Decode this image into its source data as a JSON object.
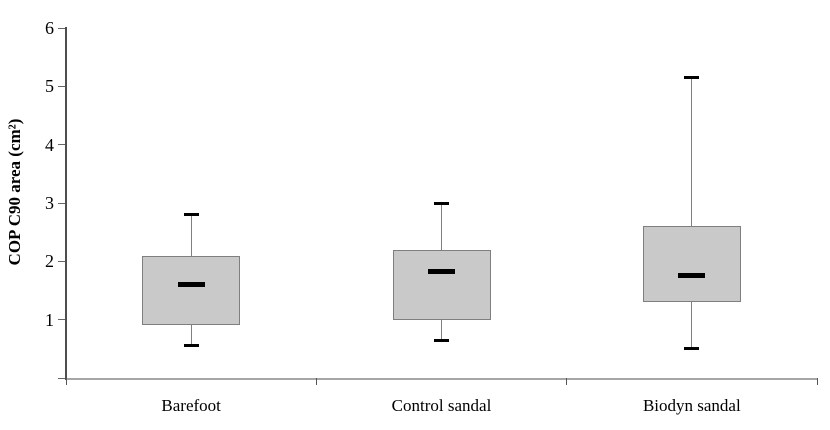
{
  "axes": {
    "y_label": "COP C90 area (cm²)",
    "y_ticks": [
      1,
      2,
      3,
      4,
      5,
      6
    ],
    "y_min": 0,
    "y_max": 6
  },
  "chart_data": {
    "type": "boxplot",
    "title": "",
    "xlabel": "",
    "ylabel": "COP C90 area (cm²)",
    "ylim": [
      0,
      6
    ],
    "grid": false,
    "legend": false,
    "categories": [
      "Barefoot",
      "Control sandal",
      "Biodyn sandal"
    ],
    "series": [
      {
        "name": "Barefoot",
        "whisker_low": 0.55,
        "q1": 0.9,
        "median": 1.6,
        "q3": 2.1,
        "whisker_high": 2.8
      },
      {
        "name": "Control sandal",
        "whisker_low": 0.65,
        "q1": 1.0,
        "median": 1.82,
        "q3": 2.2,
        "whisker_high": 3.0
      },
      {
        "name": "Biodyn sandal",
        "whisker_low": 0.5,
        "q1": 1.3,
        "median": 1.75,
        "q3": 2.6,
        "whisker_high": 5.15
      }
    ]
  },
  "colors": {
    "background": "#ffffff",
    "box_fill": "#c9c9c9",
    "box_border": "#7f7f7f",
    "whisker": "#808080",
    "cap": "#000000",
    "median": "#000000",
    "y_axis": "#4d4d4d",
    "baseline": "#a6a6a6",
    "text": "#000000"
  }
}
